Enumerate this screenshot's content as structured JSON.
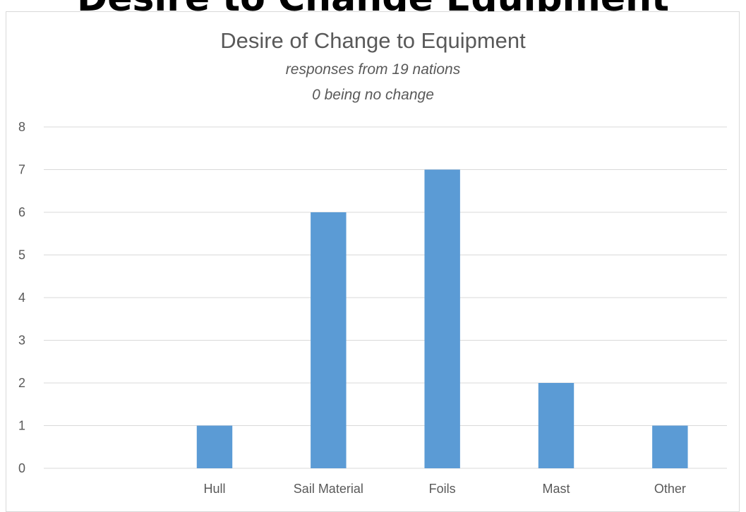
{
  "page_heading": "Desire to Change Equipment",
  "chart_data": {
    "type": "bar",
    "title": "Desire of Change to Equipment",
    "subtitle_lines": [
      "responses from 19 nations",
      "0 being no change"
    ],
    "categories": [
      "",
      "Hull",
      "Sail Material",
      "Foils",
      "Mast",
      "Other"
    ],
    "values": [
      0,
      1,
      6,
      7,
      2,
      1
    ],
    "ylim": [
      0,
      8
    ],
    "yticks": [
      0,
      1,
      2,
      3,
      4,
      5,
      6,
      7,
      8
    ],
    "xlabel": "",
    "ylabel": "",
    "grid": true,
    "bar_color": "#5b9bd5",
    "grid_color": "#d9d9d9"
  }
}
